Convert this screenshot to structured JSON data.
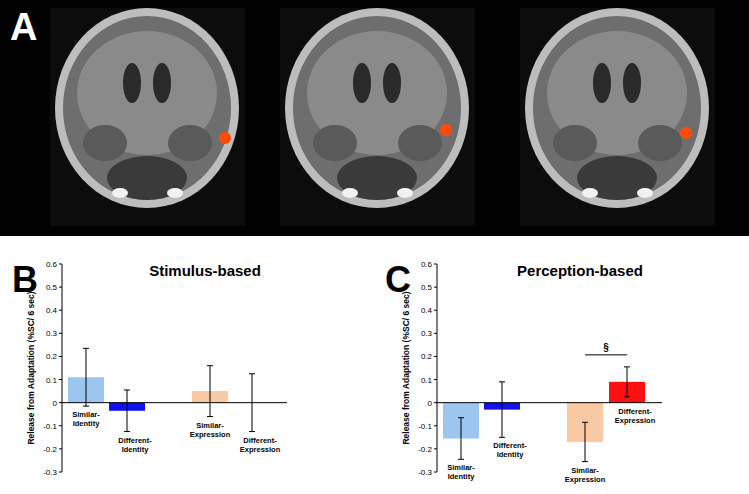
{
  "panel_a": {
    "label": "A"
  },
  "chart_data": [
    {
      "type": "bar",
      "panel": "B",
      "title": "Stimulus-based",
      "y_label": "Release from Adaptation (%SC/ 6 sec)",
      "categories": [
        "Similar-Identity",
        "Different-Identity",
        "Similar-Expression",
        "Different-Expression"
      ],
      "values": [
        0.11,
        -0.035,
        0.05,
        0
      ],
      "errors": [
        0.125,
        0.09,
        0.11,
        0.125
      ],
      "colors": [
        "#9cc6ef",
        "#1010f0",
        "#f8c9a2",
        "#ff1010"
      ],
      "ylim": [
        -0.3,
        0.6
      ],
      "yticks": [
        -0.3,
        -0.2,
        -0.1,
        0,
        0.1,
        0.2,
        0.3,
        0.4,
        0.5,
        0.6
      ]
    },
    {
      "type": "bar",
      "panel": "C",
      "title": "Perception-based",
      "y_label": "Release from Adaptation (%SC/ 6 sec)",
      "categories": [
        "Similar-Identity",
        "Different-Identity",
        "Similar-Expression",
        "Different-Expression"
      ],
      "values": [
        -0.155,
        -0.03,
        -0.17,
        0.09
      ],
      "errors": [
        0.09,
        0.12,
        0.085,
        0.065
      ],
      "colors": [
        "#9cc6ef",
        "#1010f0",
        "#f8c9a2",
        "#ff1010"
      ],
      "ylim": [
        -0.3,
        0.6
      ],
      "yticks": [
        -0.3,
        -0.2,
        -0.1,
        0,
        0.1,
        0.2,
        0.3,
        0.4,
        0.5,
        0.6
      ],
      "annotations": [
        "§"
      ]
    }
  ]
}
